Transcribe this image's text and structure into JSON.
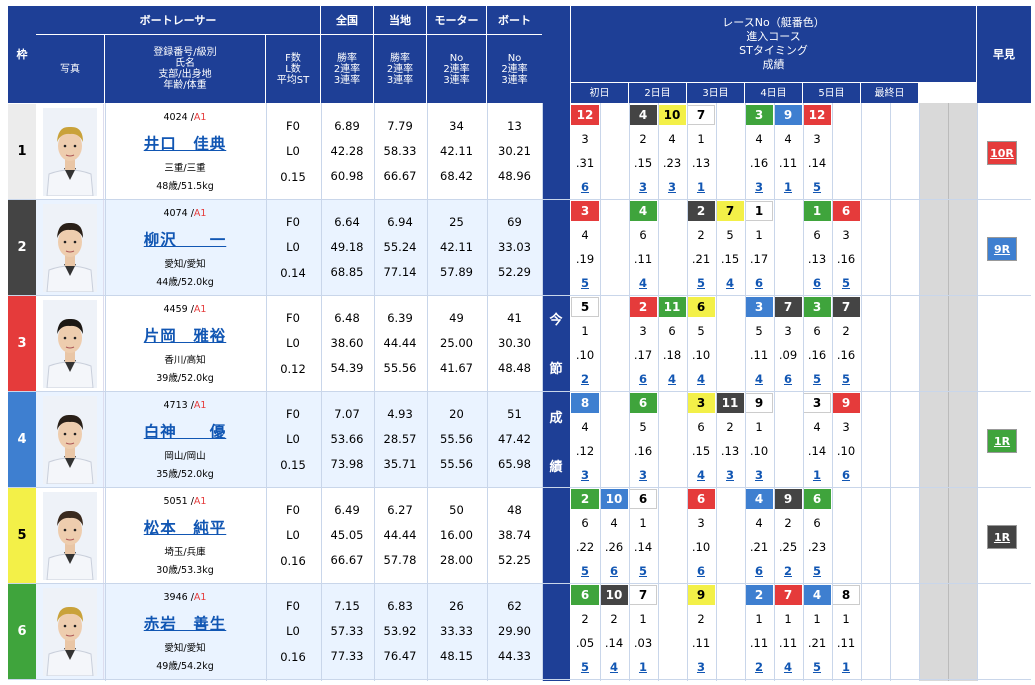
{
  "header": {
    "waku": "枠",
    "photo": "写真",
    "racer": "ボートレーサー",
    "racer_sub": "登録番号/級別\n氏名\n支部/出身地\n年齢/体重",
    "fl": "F数\nL数\n平均ST",
    "zenkoku": "全国",
    "touchi": "当地",
    "motor": "モーター",
    "boat": "ボート",
    "rate": "勝率\n2連率\n3連率",
    "motor_sub": "No\n2連率\n3連率",
    "boat_sub": "No\n2連率\n3連率",
    "race_info": "レースNo（艇番色）\n進入コース\nSTタイミング\n成績",
    "days": [
      "初日",
      "2日目",
      "3日目",
      "4日目",
      "5日目",
      "最終日"
    ],
    "hayami": "早見",
    "konsetsu": [
      "今",
      "節",
      "成",
      "績"
    ]
  },
  "racers": [
    {
      "waku": "1",
      "regno": "4024",
      "cls": "A1",
      "name": "井口　佳典",
      "area": "三重/三重",
      "age": "48歳/51.5kg",
      "f": "F0",
      "l": "L0",
      "st": "0.15",
      "zen": [
        "6.89",
        "42.28",
        "60.98"
      ],
      "toc": [
        "7.79",
        "58.33",
        "66.67"
      ],
      "mot": [
        "34",
        "42.11",
        "68.42"
      ],
      "boa": [
        "13",
        "30.21",
        "48.96"
      ],
      "races": [
        {
          "c": 0,
          "r": "12",
          "b": 3,
          "co": "3",
          "st": ".31",
          "res": "6"
        },
        {
          "c": 2,
          "r": "4",
          "b": 2,
          "co": "2",
          "st": ".15",
          "res": "3"
        },
        {
          "c": 3,
          "r": "10",
          "b": 5,
          "co": "4",
          "st": ".23",
          "res": "3"
        },
        {
          "c": 4,
          "r": "7",
          "b": 1,
          "co": "1",
          "st": ".13",
          "res": "1"
        },
        {
          "c": 6,
          "r": "3",
          "b": 6,
          "co": "4",
          "st": ".16",
          "res": "3"
        },
        {
          "c": 7,
          "r": "9",
          "b": 4,
          "co": "4",
          "st": ".11",
          "res": "1"
        },
        {
          "c": 8,
          "r": "12",
          "b": 3,
          "co": "3",
          "st": ".14",
          "res": "5"
        }
      ],
      "hay": "10R",
      "hayc": 3
    },
    {
      "waku": "2",
      "regno": "4074",
      "cls": "A1",
      "name": "柳沢　　一",
      "area": "愛知/愛知",
      "age": "44歳/52.0kg",
      "f": "F0",
      "l": "L0",
      "st": "0.14",
      "zen": [
        "6.64",
        "49.18",
        "68.85"
      ],
      "toc": [
        "6.94",
        "55.24",
        "77.14"
      ],
      "mot": [
        "25",
        "42.11",
        "57.89"
      ],
      "boa": [
        "69",
        "33.03",
        "52.29"
      ],
      "races": [
        {
          "c": 0,
          "r": "3",
          "b": 3,
          "co": "4",
          "st": ".19",
          "res": "5"
        },
        {
          "c": 2,
          "r": "4",
          "b": 6,
          "co": "6",
          "st": ".11",
          "res": "4"
        },
        {
          "c": 4,
          "r": "2",
          "b": 2,
          "co": "2",
          "st": ".21",
          "res": "5"
        },
        {
          "c": 5,
          "r": "7",
          "b": 5,
          "co": "5",
          "st": ".15",
          "res": "4"
        },
        {
          "c": 6,
          "r": "1",
          "b": 1,
          "co": "1",
          "st": ".17",
          "res": "6"
        },
        {
          "c": 8,
          "r": "1",
          "b": 6,
          "co": "6",
          "st": ".13",
          "res": "6"
        },
        {
          "c": 9,
          "r": "6",
          "b": 3,
          "co": "3",
          "st": ".16",
          "res": "5"
        }
      ],
      "hay": "9R",
      "hayc": 4
    },
    {
      "waku": "3",
      "regno": "4459",
      "cls": "A1",
      "name": "片岡　雅裕",
      "area": "香川/高知",
      "age": "39歳/52.0kg",
      "f": "F0",
      "l": "L0",
      "st": "0.12",
      "zen": [
        "6.48",
        "38.60",
        "54.39"
      ],
      "toc": [
        "6.39",
        "44.44",
        "55.56"
      ],
      "mot": [
        "49",
        "25.00",
        "41.67"
      ],
      "boa": [
        "41",
        "30.30",
        "48.48"
      ],
      "races": [
        {
          "c": 0,
          "r": "5",
          "b": 1,
          "co": "1",
          "st": ".10",
          "res": "2"
        },
        {
          "c": 2,
          "r": "2",
          "b": 3,
          "co": "3",
          "st": ".17",
          "res": "6"
        },
        {
          "c": 3,
          "r": "11",
          "b": 6,
          "co": "6",
          "st": ".18",
          "res": "4"
        },
        {
          "c": 4,
          "r": "6",
          "b": 5,
          "co": "5",
          "st": ".10",
          "res": "4"
        },
        {
          "c": 6,
          "r": "3",
          "b": 4,
          "co": "5",
          "st": ".11",
          "res": "4"
        },
        {
          "c": 7,
          "r": "7",
          "b": 2,
          "co": "3",
          "st": ".09",
          "res": "6"
        },
        {
          "c": 8,
          "r": "3",
          "b": 6,
          "co": "6",
          "st": ".16",
          "res": "5"
        },
        {
          "c": 9,
          "r": "7",
          "b": 2,
          "co": "2",
          "st": ".16",
          "res": "5"
        }
      ],
      "hay": "",
      "hayc": 0
    },
    {
      "waku": "4",
      "regno": "4713",
      "cls": "A1",
      "name": "白神　　優",
      "area": "岡山/岡山",
      "age": "35歳/52.0kg",
      "f": "F0",
      "l": "L0",
      "st": "0.15",
      "zen": [
        "7.07",
        "53.66",
        "73.98"
      ],
      "toc": [
        "4.93",
        "28.57",
        "35.71"
      ],
      "mot": [
        "20",
        "55.56",
        "55.56"
      ],
      "boa": [
        "51",
        "47.42",
        "65.98"
      ],
      "races": [
        {
          "c": 0,
          "r": "8",
          "b": 4,
          "co": "4",
          "st": ".12",
          "res": "3"
        },
        {
          "c": 2,
          "r": "6",
          "b": 6,
          "co": "5",
          "st": ".16",
          "res": "3"
        },
        {
          "c": 4,
          "r": "3",
          "b": 5,
          "co": "6",
          "st": ".15",
          "res": "4"
        },
        {
          "c": 5,
          "r": "11",
          "b": 2,
          "co": "2",
          "st": ".13",
          "res": "3"
        },
        {
          "c": 6,
          "r": "9",
          "b": 1,
          "co": "1",
          "st": ".10",
          "res": "3"
        },
        {
          "c": 8,
          "r": "3",
          "b": 1,
          "co": "4",
          "st": ".14",
          "res": "1"
        },
        {
          "c": 9,
          "r": "9",
          "b": 3,
          "co": "3",
          "st": ".10",
          "res": "6"
        }
      ],
      "hay": "1R",
      "hayc": 6
    },
    {
      "waku": "5",
      "regno": "5051",
      "cls": "A1",
      "name": "松本　純平",
      "area": "埼玉/兵庫",
      "age": "30歳/53.3kg",
      "f": "F0",
      "l": "L0",
      "st": "0.16",
      "zen": [
        "6.49",
        "45.05",
        "66.67"
      ],
      "toc": [
        "6.27",
        "44.44",
        "57.78"
      ],
      "mot": [
        "50",
        "16.00",
        "28.00"
      ],
      "boa": [
        "48",
        "38.74",
        "52.25"
      ],
      "races": [
        {
          "c": 0,
          "r": "2",
          "b": 6,
          "co": "6",
          "st": ".22",
          "res": "5"
        },
        {
          "c": 1,
          "r": "10",
          "b": 4,
          "co": "4",
          "st": ".26",
          "res": "6"
        },
        {
          "c": 2,
          "r": "6",
          "b": 1,
          "co": "1",
          "st": ".14",
          "res": "5"
        },
        {
          "c": 4,
          "r": "6",
          "b": 3,
          "co": "3",
          "st": ".10",
          "res": "6"
        },
        {
          "c": 6,
          "r": "4",
          "b": 4,
          "co": "4",
          "st": ".21",
          "res": "6"
        },
        {
          "c": 7,
          "r": "9",
          "b": 2,
          "co": "2",
          "st": ".25",
          "res": "2"
        },
        {
          "c": 8,
          "r": "6",
          "b": 6,
          "co": "6",
          "st": ".23",
          "res": "5"
        }
      ],
      "hay": "1R",
      "hayc": 2
    },
    {
      "waku": "6",
      "regno": "3946",
      "cls": "A1",
      "name": "赤岩　善生",
      "area": "愛知/愛知",
      "age": "49歳/54.2kg",
      "f": "F0",
      "l": "L0",
      "st": "0.16",
      "zen": [
        "7.15",
        "57.33",
        "77.33"
      ],
      "toc": [
        "6.83",
        "53.92",
        "76.47"
      ],
      "mot": [
        "26",
        "33.33",
        "48.15"
      ],
      "boa": [
        "62",
        "29.90",
        "44.33"
      ],
      "races": [
        {
          "c": 0,
          "r": "6",
          "b": 6,
          "co": "2",
          "st": ".05",
          "res": "5"
        },
        {
          "c": 1,
          "r": "10",
          "b": 2,
          "co": "2",
          "st": ".14",
          "res": "4"
        },
        {
          "c": 2,
          "r": "7",
          "b": 1,
          "co": "1",
          "st": ".03",
          "res": "1"
        },
        {
          "c": 4,
          "r": "9",
          "b": 5,
          "co": "2",
          "st": ".11",
          "res": "3"
        },
        {
          "c": 6,
          "r": "2",
          "b": 4,
          "co": "1",
          "st": ".11",
          "res": "2"
        },
        {
          "c": 7,
          "r": "7",
          "b": 3,
          "co": "1",
          "st": ".11",
          "res": "4"
        },
        {
          "c": 8,
          "r": "4",
          "b": 4,
          "co": "1",
          "st": ".21",
          "res": "5"
        },
        {
          "c": 9,
          "r": "8",
          "b": 1,
          "co": "1",
          "st": ".11",
          "res": "1"
        }
      ],
      "hay": "",
      "hayc": 0
    }
  ]
}
